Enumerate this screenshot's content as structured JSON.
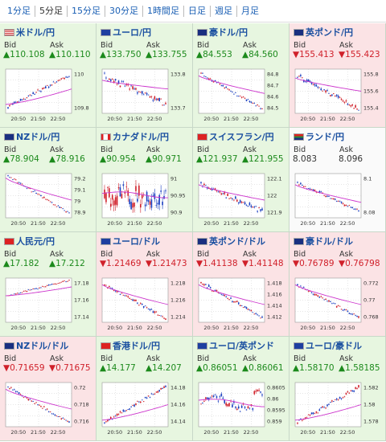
{
  "tabs": [
    "1分足",
    "5分足",
    "15分足",
    "30分足",
    "1時間足",
    "日足",
    "週足",
    "月足"
  ],
  "active_tab": 1,
  "labels": {
    "bid": "Bid",
    "ask": "Ask"
  },
  "colors": {
    "up": "#1c8a1c",
    "down": "#d0202a",
    "flat": "#333333",
    "candle_up": "#d0202a",
    "candle_down": "#1a3fc0",
    "ma": "#cc33cc",
    "up_bg": "#e7f6e0",
    "down_bg": "#fbe3e5"
  },
  "chart_time_labels": [
    "20:50",
    "21:50",
    "22:50"
  ],
  "pairs": [
    {
      "name": "米ドル/円",
      "flag": "us-flag-icon",
      "dir": "up",
      "bid": "▲110.108",
      "ask": "▲110.110",
      "ticks": [
        "110",
        "109.8"
      ],
      "trend": "up",
      "start": 0.15,
      "end": 0.85,
      "ma_start": 0.2,
      "ma_end": 0.55,
      "vol": 0.06,
      "ma_shape": "rising"
    },
    {
      "name": "ユーロ/円",
      "flag": "eu-flag-icon",
      "dir": "up",
      "bid": "▲133.750",
      "ask": "▲133.755",
      "ticks": [
        "133.8",
        "133.7"
      ],
      "trend": "down",
      "start": 0.85,
      "end": 0.2,
      "ma_start": 0.75,
      "ma_end": 0.55,
      "vol": 0.1,
      "ma_shape": "falling"
    },
    {
      "name": "豪ドル/円",
      "flag": "au-flag-icon",
      "dir": "up",
      "bid": "▲84.553",
      "ask": "▲84.560",
      "ticks": [
        "84.8",
        "84.7",
        "84.6",
        "84.5"
      ],
      "trend": "down",
      "start": 0.9,
      "end": 0.1,
      "ma_start": 0.85,
      "ma_end": 0.45,
      "vol": 0.05,
      "ma_shape": "falling"
    },
    {
      "name": "英ポンド/円",
      "flag": "gb-flag-icon",
      "dir": "down",
      "bid": "▼155.413",
      "ask": "▼155.423",
      "ticks": [
        "155.8",
        "155.6",
        "155.4"
      ],
      "trend": "down",
      "start": 0.85,
      "end": 0.1,
      "ma_start": 0.8,
      "ma_end": 0.5,
      "vol": 0.08,
      "ma_shape": "falling"
    },
    {
      "name": "NZドル/円",
      "flag": "nz-flag-icon",
      "dir": "up",
      "bid": "▲78.904",
      "ask": "▲78.916",
      "ticks": [
        "79.2",
        "79.1",
        "79",
        "78.9"
      ],
      "trend": "down",
      "start": 0.95,
      "end": 0.1,
      "ma_start": 0.9,
      "ma_end": 0.4,
      "vol": 0.04,
      "ma_shape": "falling"
    },
    {
      "name": "カナダドル/円",
      "flag": "ca-flag-icon",
      "dir": "up",
      "bid": "▲90.954",
      "ask": "▲90.971",
      "ticks": [
        "91",
        "90.95",
        "90.9"
      ],
      "trend": "flat",
      "start": 0.5,
      "end": 0.45,
      "ma_start": 0.55,
      "ma_end": 0.5,
      "vol": 0.35,
      "ma_shape": "flat"
    },
    {
      "name": "スイスフラン/円",
      "flag": "ch-flag-icon",
      "dir": "up",
      "bid": "▲121.937",
      "ask": "▲121.955",
      "ticks": [
        "122.1",
        "122",
        "121.9"
      ],
      "trend": "down",
      "start": 0.75,
      "end": 0.15,
      "ma_start": 0.75,
      "ma_end": 0.4,
      "vol": 0.08,
      "ma_shape": "falling"
    },
    {
      "name": "ランド/円",
      "flag": "za-flag-icon",
      "dir": "flat",
      "bid": "8.083",
      "ask": "8.096",
      "ticks": [
        "8.1",
        "8.08"
      ],
      "trend": "down",
      "start": 0.8,
      "end": 0.15,
      "ma_start": 0.75,
      "ma_end": 0.35,
      "vol": 0.06,
      "ma_shape": "falling"
    },
    {
      "name": "人民元/円",
      "flag": "cn-flag-icon",
      "dir": "up",
      "bid": "▲17.182",
      "ask": "▲17.212",
      "ticks": [
        "17.18",
        "17.16",
        "17.14"
      ],
      "trend": "up",
      "start": 0.6,
      "end": 0.95,
      "ma_start": 0.6,
      "ma_end": 0.8,
      "vol": 0.03,
      "ma_shape": "rising"
    },
    {
      "name": "ユーロ/ドル",
      "flag": "eu-flag-icon",
      "dir": "down",
      "bid": "▼1.21469",
      "ask": "▼1.21473",
      "ticks": [
        "1.218",
        "1.216",
        "1.214"
      ],
      "trend": "down",
      "start": 0.85,
      "end": 0.1,
      "ma_start": 0.85,
      "ma_end": 0.4,
      "vol": 0.06,
      "ma_shape": "falling"
    },
    {
      "name": "英ポンド/ドル",
      "flag": "gb-flag-icon",
      "dir": "down",
      "bid": "▼1.41138",
      "ask": "▼1.41148",
      "ticks": [
        "1.418",
        "1.416",
        "1.414",
        "1.412"
      ],
      "trend": "down",
      "start": 0.9,
      "end": 0.1,
      "ma_start": 0.85,
      "ma_end": 0.4,
      "vol": 0.06,
      "ma_shape": "falling"
    },
    {
      "name": "豪ドル/ドル",
      "flag": "au-flag-icon",
      "dir": "down",
      "bid": "▼0.76789",
      "ask": "▼0.76798",
      "ticks": [
        "0.772",
        "0.77",
        "0.768"
      ],
      "trend": "down",
      "start": 0.85,
      "end": 0.1,
      "ma_start": 0.85,
      "ma_end": 0.4,
      "vol": 0.05,
      "ma_shape": "falling"
    },
    {
      "name": "NZドル/ドル",
      "flag": "nz-flag-icon",
      "dir": "down",
      "bid": "▼0.71659",
      "ask": "▼0.71675",
      "ticks": [
        "0.72",
        "0.718",
        "0.716"
      ],
      "trend": "down",
      "start": 0.9,
      "end": 0.1,
      "ma_start": 0.85,
      "ma_end": 0.4,
      "vol": 0.05,
      "ma_shape": "falling"
    },
    {
      "name": "香港ドル/円",
      "flag": "hk-flag-icon",
      "dir": "up",
      "bid": "▲14.177",
      "ask": "▲14.207",
      "ticks": [
        "14.18",
        "14.16",
        "14.14"
      ],
      "trend": "up",
      "start": 0.1,
      "end": 0.9,
      "ma_start": 0.15,
      "ma_end": 0.5,
      "vol": 0.06,
      "ma_shape": "rising"
    },
    {
      "name": "ユーロ/英ポンド",
      "flag": "eu-flag-icon",
      "dir": "up",
      "bid": "▲0.86051",
      "ask": "▲0.86061",
      "ticks": [
        "0.8605",
        "0.86",
        "0.8595",
        "0.859"
      ],
      "trend": "updown",
      "start": 0.5,
      "end": 0.85,
      "ma_start": 0.6,
      "ma_end": 0.5,
      "vol": 0.12,
      "ma_shape": "flat"
    },
    {
      "name": "ユーロ/豪ドル",
      "flag": "eu-flag-icon",
      "dir": "up",
      "bid": "▲1.58170",
      "ask": "▲1.58185",
      "ticks": [
        "1.582",
        "1.58",
        "1.578"
      ],
      "trend": "up",
      "start": 0.1,
      "end": 0.9,
      "ma_start": 0.15,
      "ma_end": 0.5,
      "vol": 0.07,
      "ma_shape": "rising"
    }
  ]
}
